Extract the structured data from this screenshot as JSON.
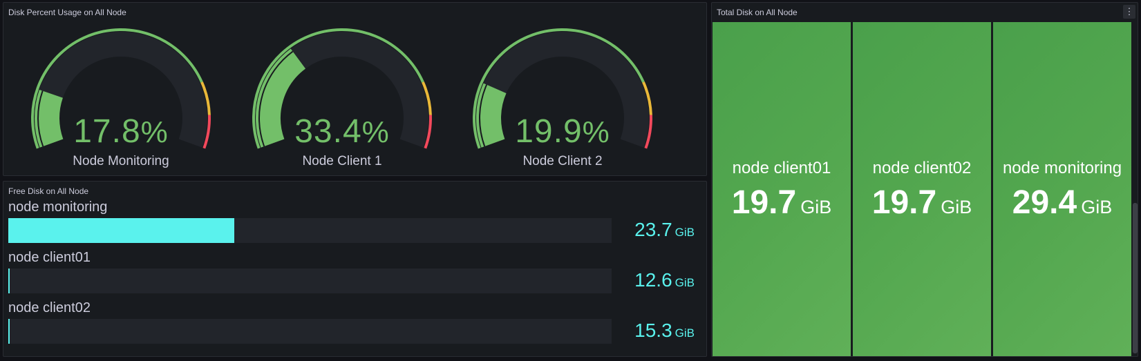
{
  "colors": {
    "background": "#111217",
    "panel": "#181b1f",
    "gauge_green": "#73bf69",
    "gauge_orange": "#eab839",
    "gauge_red": "#f2495c",
    "bar_cyan": "#5af2ed",
    "tile_green": "#53a74f"
  },
  "gauge_panel": {
    "title": "Disk Percent Usage on All Node",
    "gauges": [
      {
        "number": "17.8",
        "unit": "%",
        "label": "Node Monitoring",
        "percent": 17.8
      },
      {
        "number": "33.4",
        "unit": "%",
        "label": "Node Client 1",
        "percent": 33.4
      },
      {
        "number": "19.9",
        "unit": "%",
        "label": "Node Client 2",
        "percent": 19.9
      }
    ]
  },
  "free_panel": {
    "title": "Free Disk on All Node",
    "bars": [
      {
        "name": "node monitoring",
        "number": "23.7",
        "unit": "GiB",
        "fill_fraction": 0.375
      },
      {
        "name": "node client01",
        "number": "12.6",
        "unit": "GiB",
        "fill_fraction": 0.002
      },
      {
        "name": "node client02",
        "number": "15.3",
        "unit": "GiB",
        "fill_fraction": 0.002
      }
    ]
  },
  "total_panel": {
    "title": "Total Disk on All Node",
    "menu_icon": "kebab-menu-icon",
    "tiles": [
      {
        "name": "node client01",
        "number": "19.7",
        "unit": "GiB"
      },
      {
        "name": "node client02",
        "number": "19.7",
        "unit": "GiB"
      },
      {
        "name": "node monitoring",
        "number": "29.4",
        "unit": "GiB"
      }
    ]
  }
}
